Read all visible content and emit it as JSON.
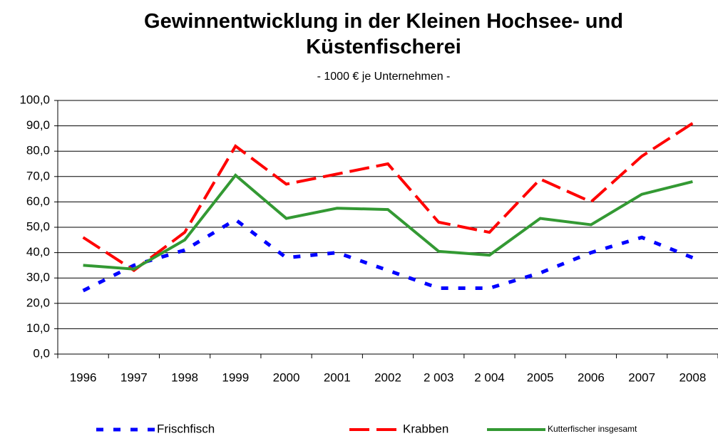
{
  "chart_data": {
    "type": "line",
    "title": "Gewinnentwicklung in der Kleinen Hochsee- und Küstenfischerei",
    "subtitle": "- 1000 € je Unternehmen -",
    "categories": [
      "1996",
      "1997",
      "1998",
      "1999",
      "2000",
      "2001",
      "2002",
      "2 003",
      "2 004",
      "2005",
      "2006",
      "2007",
      "2008"
    ],
    "series": [
      {
        "name": "Frischfisch",
        "color": "#0000ff",
        "values": [
          25,
          35,
          41,
          53,
          38,
          40,
          33,
          26,
          26,
          32,
          40,
          46,
          38
        ]
      },
      {
        "name": "Krabben",
        "color": "#ff0000",
        "values": [
          46,
          33,
          48,
          82,
          67,
          71,
          75,
          52,
          48,
          69,
          60,
          78,
          91
        ]
      },
      {
        "name": "Kutterfischer insgesamt",
        "color": "#339933",
        "values": [
          35,
          33.5,
          45,
          70.5,
          53.5,
          57.5,
          57,
          40.5,
          39,
          53.5,
          51,
          63,
          68
        ]
      }
    ],
    "ylim": [
      0,
      100
    ],
    "yticks": [
      {
        "value": 0,
        "label": "0,0"
      },
      {
        "value": 10,
        "label": "10,0"
      },
      {
        "value": 20,
        "label": "20,0"
      },
      {
        "value": 30,
        "label": "30,0"
      },
      {
        "value": 40,
        "label": "40,0"
      },
      {
        "value": 50,
        "label": "50,0"
      },
      {
        "value": 60,
        "label": "60,0"
      },
      {
        "value": 70,
        "label": "70,0"
      },
      {
        "value": 80,
        "label": "80,0"
      },
      {
        "value": 90,
        "label": "90,0"
      },
      {
        "value": 100,
        "label": "100,0"
      }
    ],
    "grid": true,
    "legend": "bottom"
  }
}
